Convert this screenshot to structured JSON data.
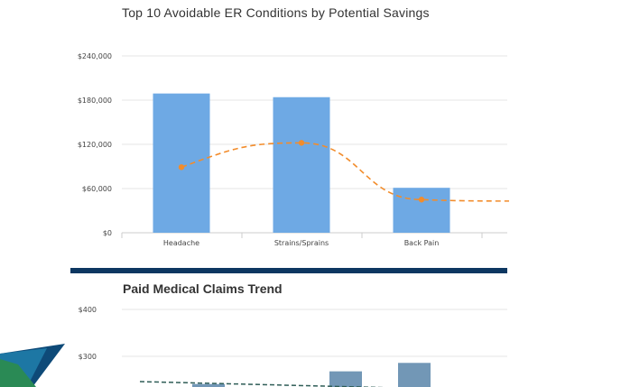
{
  "chart_data": [
    {
      "type": "bar",
      "title": "Top 10 Avoidable ER Conditions by Potential Savings",
      "categories": [
        "Headache",
        "Strains/Sprains",
        "Back Pain"
      ],
      "series": [
        {
          "type": "bar",
          "values": [
            189000,
            184000,
            61000
          ],
          "color": "#6ea9e4"
        },
        {
          "type": "line",
          "style": "dashed",
          "smooth": true,
          "values": [
            89000,
            122000,
            45000
          ],
          "trail_end": 43000,
          "color": "#f28c2b"
        }
      ],
      "ylim": [
        0,
        240000
      ],
      "yticks": [
        0,
        60000,
        120000,
        180000,
        240000
      ],
      "ytick_labels": [
        "$0",
        "$60,000",
        "$120,000",
        "$180,000",
        "$240,000"
      ],
      "grid": true
    },
    {
      "type": "bar",
      "title": "Paid Medical Claims Trend",
      "bar_values": [
        241,
        268,
        286
      ],
      "bar_color": "#7297b6",
      "trend_color": "#2f5d57",
      "yticks": [
        300,
        400
      ],
      "ytick_labels": [
        "$300",
        "$400"
      ],
      "grid": true
    }
  ]
}
